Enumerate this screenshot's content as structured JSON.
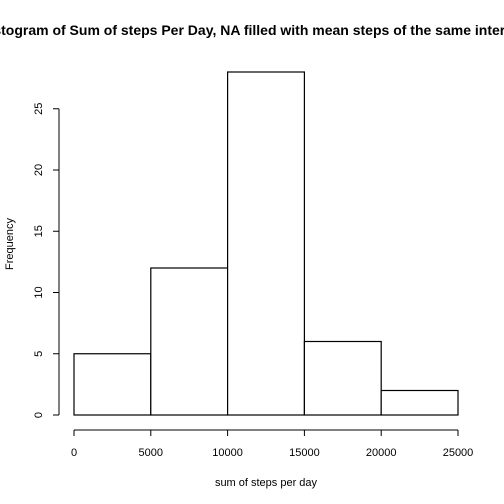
{
  "chart_data": {
    "type": "bar",
    "title": "Histogram of Sum of steps Per Day, NA filled with mean steps of the same interval",
    "xlabel": "sum of steps per day",
    "ylabel": "Frequency",
    "bins": [
      {
        "from": 0,
        "to": 5000,
        "value": 5
      },
      {
        "from": 5000,
        "to": 10000,
        "value": 12
      },
      {
        "from": 10000,
        "to": 15000,
        "value": 28
      },
      {
        "from": 15000,
        "to": 20000,
        "value": 6
      },
      {
        "from": 20000,
        "to": 25000,
        "value": 2
      }
    ],
    "xlim": [
      0,
      25000
    ],
    "ylim": [
      0,
      28
    ],
    "xticks": [
      0,
      5000,
      10000,
      15000,
      20000,
      25000
    ],
    "yticks": [
      0,
      5,
      10,
      15,
      20,
      25
    ],
    "grid": false,
    "colors": {
      "bar_fill": "#ffffff",
      "bar_stroke": "#000000"
    }
  }
}
